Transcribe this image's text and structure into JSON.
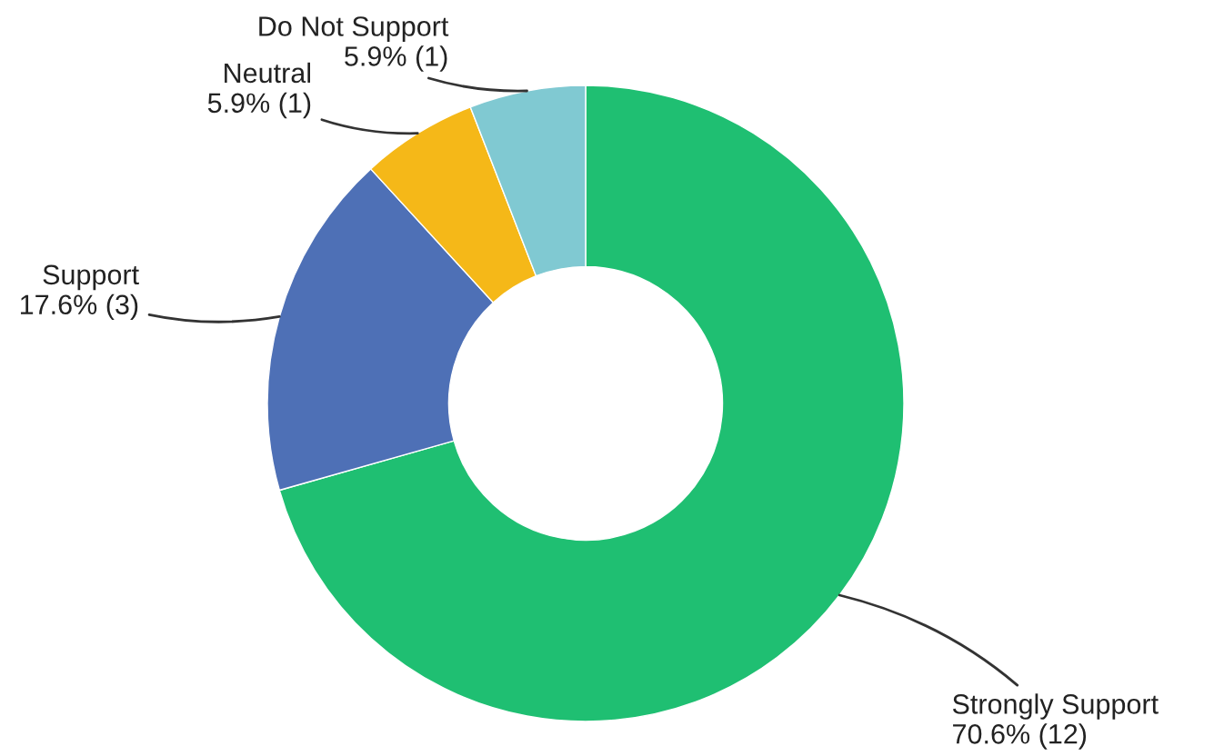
{
  "chart_data": {
    "type": "donut",
    "categories": [
      "Strongly Support",
      "Support",
      "Neutral",
      "Do Not Support"
    ],
    "values": [
      70.6,
      17.6,
      5.9,
      5.9
    ],
    "value_labels": [
      "70.6% (12)",
      "17.6% (3)",
      "5.9% (1)",
      "5.9% (1)"
    ],
    "colors": [
      "#1fbf72",
      "#4e70b6",
      "#f5b818",
      "#80c9d2"
    ]
  }
}
